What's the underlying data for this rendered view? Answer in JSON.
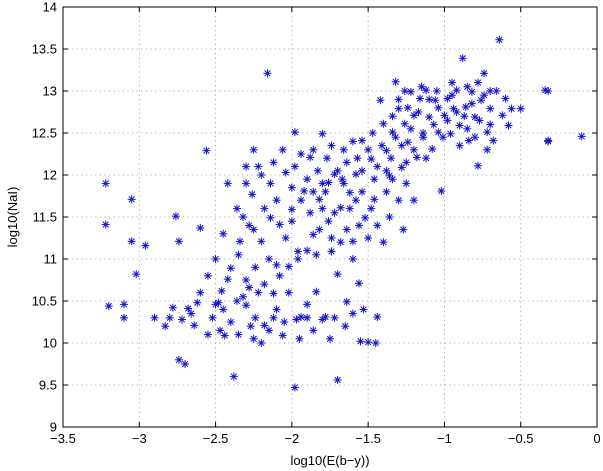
{
  "chart_data": {
    "type": "scatter",
    "title": "",
    "xlabel": "log10(E(b−y))",
    "ylabel": "log10(NaI)",
    "xlim": [
      -3.5,
      0
    ],
    "ylim": [
      9,
      14
    ],
    "xticks": [
      -3.5,
      -3,
      -2.5,
      -2,
      -1.5,
      -1,
      -0.5,
      0
    ],
    "xtick_labels": [
      "−3.5",
      "−3",
      "−2.5",
      "−2",
      "−1.5",
      "−1",
      "−0.5",
      "0"
    ],
    "yticks": [
      9,
      9.5,
      10,
      10.5,
      11,
      11.5,
      12,
      12.5,
      13,
      13.5,
      14
    ],
    "ytick_labels": [
      "9",
      "9.5",
      "10",
      "10.5",
      "11",
      "11.5",
      "12",
      "12.5",
      "13",
      "13.5",
      "14"
    ],
    "grid": true,
    "marker": "asterisk",
    "marker_color": "#1414c8",
    "points": [
      [
        -3.22,
        11.9
      ],
      [
        -3.22,
        11.41
      ],
      [
        -3.2,
        10.44
      ],
      [
        -3.1,
        10.46
      ],
      [
        -3.1,
        10.3
      ],
      [
        -3.05,
        11.71
      ],
      [
        -3.05,
        11.21
      ],
      [
        -3.02,
        10.82
      ],
      [
        -2.96,
        11.16
      ],
      [
        -2.83,
        10.2
      ],
      [
        -2.8,
        10.3
      ],
      [
        -2.76,
        11.51
      ],
      [
        -2.74,
        11.21
      ],
      [
        -2.74,
        9.8
      ],
      [
        -2.7,
        9.75
      ],
      [
        -2.68,
        10.41
      ],
      [
        -2.64,
        10.21
      ],
      [
        -2.62,
        10.48
      ],
      [
        -2.6,
        11.37
      ],
      [
        -2.56,
        12.29
      ],
      [
        -2.5,
        10.46
      ],
      [
        -2.48,
        10.48
      ],
      [
        -2.46,
        10.62
      ],
      [
        -2.44,
        10.09
      ],
      [
        -2.42,
        10.76
      ],
      [
        -2.4,
        10.89
      ],
      [
        -2.38,
        9.6
      ],
      [
        -2.36,
        10.5
      ],
      [
        -2.34,
        11.21
      ],
      [
        -2.32,
        11.5
      ],
      [
        -2.3,
        11.9
      ],
      [
        -2.28,
        10.66
      ],
      [
        -2.26,
        11.77
      ],
      [
        -2.24,
        10.3
      ],
      [
        -2.22,
        12.1
      ],
      [
        -2.2,
        11.21
      ],
      [
        -2.18,
        10.21
      ],
      [
        -2.16,
        13.21
      ],
      [
        -2.14,
        11.49
      ],
      [
        -2.12,
        10.59
      ],
      [
        -2.1,
        10.93
      ],
      [
        -2.08,
        11.41
      ],
      [
        -2.06,
        10.09
      ],
      [
        -2.04,
        12.03
      ],
      [
        -2.02,
        10.91
      ],
      [
        -2.0,
        11.59
      ],
      [
        -1.98,
        12.51
      ],
      [
        -1.98,
        9.47
      ],
      [
        -1.96,
        11.09
      ],
      [
        -1.94,
        10.31
      ],
      [
        -1.92,
        11.81
      ],
      [
        -1.9,
        10.46
      ],
      [
        -1.88,
        12.21
      ],
      [
        -1.86,
        11.29
      ],
      [
        -1.84,
        10.61
      ],
      [
        -1.82,
        11.71
      ],
      [
        -1.8,
        12.49
      ],
      [
        -1.78,
        10.31
      ],
      [
        -1.76,
        11.91
      ],
      [
        -1.74,
        11.09
      ],
      [
        -1.72,
        12.01
      ],
      [
        -1.7,
        10.82
      ],
      [
        -1.7,
        9.56
      ],
      [
        -1.68,
        11.61
      ],
      [
        -1.66,
        12.3
      ],
      [
        -1.64,
        10.49
      ],
      [
        -1.62,
        11.79
      ],
      [
        -1.6,
        11.21
      ],
      [
        -1.58,
        12.01
      ],
      [
        -1.56,
        10.71
      ],
      [
        -1.54,
        12.41
      ],
      [
        -1.52,
        11.49
      ],
      [
        -1.5,
        10.01
      ],
      [
        -1.48,
        12.19
      ],
      [
        -1.46,
        11.71
      ],
      [
        -1.44,
        10.31
      ],
      [
        -1.42,
        12.89
      ],
      [
        -1.4,
        12.61
      ],
      [
        -1.38,
        12.29
      ],
      [
        -1.36,
        11.99
      ],
      [
        -1.34,
        12.51
      ],
      [
        -1.32,
        13.11
      ],
      [
        -1.3,
        12.79
      ],
      [
        -1.28,
        12.09
      ],
      [
        -1.26,
        12.61
      ],
      [
        -1.24,
        12.39
      ],
      [
        -1.22,
        12.99
      ],
      [
        -1.2,
        12.71
      ],
      [
        -1.18,
        12.21
      ],
      [
        -1.16,
        12.91
      ],
      [
        -1.14,
        12.5
      ],
      [
        -1.12,
        13.01
      ],
      [
        -1.1,
        12.69
      ],
      [
        -1.08,
        12.31
      ],
      [
        -1.06,
        12.89
      ],
      [
        -1.04,
        12.51
      ],
      [
        -1.02,
        11.81
      ],
      [
        -1.0,
        12.71
      ],
      [
        -0.98,
        12.91
      ],
      [
        -0.96,
        12.49
      ],
      [
        -0.94,
        12.79
      ],
      [
        -0.92,
        13.01
      ],
      [
        -0.9,
        12.59
      ],
      [
        -0.88,
        13.39
      ],
      [
        -0.86,
        12.81
      ],
      [
        -0.84,
        12.41
      ],
      [
        -0.82,
        12.99
      ],
      [
        -0.8,
        12.69
      ],
      [
        -0.78,
        12.11
      ],
      [
        -0.76,
        12.89
      ],
      [
        -0.74,
        13.21
      ],
      [
        -0.72,
        12.51
      ],
      [
        -0.7,
        12.79
      ],
      [
        -0.68,
        12.41
      ],
      [
        -0.66,
        13.0
      ],
      [
        -0.64,
        13.61
      ],
      [
        -0.62,
        12.71
      ],
      [
        -0.6,
        12.91
      ],
      [
        -0.58,
        12.59
      ],
      [
        -0.56,
        12.79
      ],
      [
        -0.5,
        12.79
      ],
      [
        -0.34,
        13.01
      ],
      [
        -0.32,
        13.0
      ],
      [
        -0.32,
        12.4
      ],
      [
        -0.32,
        12.41
      ],
      [
        -0.1,
        12.46
      ],
      [
        -2.55,
        10.1
      ],
      [
        -2.52,
        10.3
      ],
      [
        -2.47,
        10.15
      ],
      [
        -2.45,
        10.4
      ],
      [
        -2.4,
        10.25
      ],
      [
        -2.35,
        10.1
      ],
      [
        -2.3,
        10.45
      ],
      [
        -2.27,
        10.2
      ],
      [
        -2.25,
        10.05
      ],
      [
        -2.22,
        10.6
      ],
      [
        -2.2,
        10.0
      ],
      [
        -2.18,
        10.7
      ],
      [
        -2.15,
        10.15
      ],
      [
        -2.12,
        10.3
      ],
      [
        -2.1,
        10.4
      ],
      [
        -2.05,
        10.25
      ],
      [
        -2.02,
        10.6
      ],
      [
        -1.97,
        10.28
      ],
      [
        -1.95,
        10.05
      ],
      [
        -1.9,
        10.3
      ],
      [
        -1.86,
        10.15
      ],
      [
        -1.8,
        10.28
      ],
      [
        -1.75,
        10.05
      ],
      [
        -1.72,
        10.3
      ],
      [
        -1.65,
        10.2
      ],
      [
        -1.6,
        10.35
      ],
      [
        -1.55,
        10.02
      ],
      [
        -1.45,
        10.0
      ],
      [
        -1.53,
        10.4
      ],
      [
        -2.35,
        11.05
      ],
      [
        -2.3,
        10.75
      ],
      [
        -2.25,
        11.35
      ],
      [
        -2.15,
        11.0
      ],
      [
        -2.1,
        11.7
      ],
      [
        -2.08,
        10.8
      ],
      [
        -2.04,
        11.25
      ],
      [
        -2.0,
        11.45
      ],
      [
        -1.96,
        11.0
      ],
      [
        -1.94,
        11.7
      ],
      [
        -1.9,
        11.1
      ],
      [
        -1.88,
        11.55
      ],
      [
        -1.86,
        11.8
      ],
      [
        -1.84,
        11.05
      ],
      [
        -1.82,
        11.35
      ],
      [
        -1.8,
        11.6
      ],
      [
        -1.78,
        11.8
      ],
      [
        -1.76,
        11.45
      ],
      [
        -1.74,
        11.25
      ],
      [
        -1.72,
        11.55
      ],
      [
        -1.68,
        11.2
      ],
      [
        -1.66,
        11.9
      ],
      [
        -1.64,
        11.35
      ],
      [
        -1.62,
        11.6
      ],
      [
        -1.6,
        11.0
      ],
      [
        -1.58,
        11.7
      ],
      [
        -1.56,
        11.4
      ],
      [
        -1.54,
        11.8
      ],
      [
        -1.5,
        11.25
      ],
      [
        -1.48,
        11.6
      ],
      [
        -1.46,
        11.95
      ],
      [
        -1.44,
        11.4
      ],
      [
        -1.4,
        11.2
      ],
      [
        -1.38,
        11.8
      ],
      [
        -1.36,
        11.5
      ],
      [
        -1.34,
        11.95
      ],
      [
        -1.3,
        11.7
      ],
      [
        -1.27,
        11.35
      ],
      [
        -1.25,
        11.9
      ],
      [
        -1.2,
        11.7
      ],
      [
        -2.0,
        11.85
      ],
      [
        -1.98,
        12.1
      ],
      [
        -1.94,
        12.25
      ],
      [
        -1.9,
        11.95
      ],
      [
        -1.86,
        12.3
      ],
      [
        -1.83,
        12.05
      ],
      [
        -1.8,
        11.9
      ],
      [
        -1.77,
        12.2
      ],
      [
        -1.74,
        12.35
      ],
      [
        -1.7,
        12.05
      ],
      [
        -1.67,
        11.95
      ],
      [
        -1.64,
        12.15
      ],
      [
        -1.6,
        12.4
      ],
      [
        -1.57,
        12.2
      ],
      [
        -1.54,
        12.05
      ],
      [
        -1.5,
        12.3
      ],
      [
        -1.47,
        12.5
      ],
      [
        -1.44,
        12.1
      ],
      [
        -1.41,
        12.35
      ],
      [
        -1.38,
        12.05
      ],
      [
        -1.35,
        12.2
      ],
      [
        -1.32,
        12.45
      ],
      [
        -1.28,
        12.35
      ],
      [
        -1.25,
        12.15
      ],
      [
        -1.22,
        12.55
      ],
      [
        -1.2,
        12.3
      ],
      [
        -1.17,
        12.75
      ],
      [
        -1.14,
        12.45
      ],
      [
        -1.12,
        12.2
      ],
      [
        -1.1,
        12.9
      ],
      [
        -1.07,
        12.6
      ],
      [
        -1.04,
        12.8
      ],
      [
        -1.01,
        12.45
      ],
      [
        -0.98,
        12.65
      ],
      [
        -0.95,
        12.95
      ],
      [
        -0.92,
        12.75
      ],
      [
        -0.9,
        12.35
      ],
      [
        -0.87,
        12.7
      ],
      [
        -0.85,
        12.55
      ],
      [
        -0.82,
        12.85
      ],
      [
        -0.8,
        12.45
      ],
      [
        -0.77,
        12.65
      ],
      [
        -0.74,
        12.95
      ],
      [
        -0.72,
        12.3
      ],
      [
        -0.7,
        12.6
      ],
      [
        -1.3,
        12.9
      ],
      [
        -1.26,
        13.0
      ],
      [
        -1.15,
        13.05
      ],
      [
        -1.05,
        13.0
      ],
      [
        -0.95,
        13.1
      ],
      [
        -0.85,
        13.05
      ],
      [
        -0.78,
        13.1
      ],
      [
        -0.7,
        13.0
      ],
      [
        -1.34,
        12.7
      ],
      [
        -1.24,
        12.8
      ],
      [
        -2.6,
        10.6
      ],
      [
        -2.66,
        10.35
      ],
      [
        -2.78,
        10.42
      ],
      [
        -2.72,
        10.28
      ],
      [
        -2.9,
        10.3
      ],
      [
        -2.3,
        12.1
      ],
      [
        -2.25,
        12.3
      ],
      [
        -2.2,
        12.0
      ],
      [
        -2.12,
        12.15
      ],
      [
        -2.06,
        12.3
      ],
      [
        -2.42,
        11.9
      ],
      [
        -2.36,
        11.6
      ],
      [
        -2.45,
        11.3
      ],
      [
        -2.5,
        11.0
      ],
      [
        -2.55,
        10.8
      ],
      [
        -2.14,
        11.9
      ],
      [
        -2.18,
        11.6
      ],
      [
        -2.24,
        10.9
      ],
      [
        -2.28,
        11.4
      ],
      [
        -2.32,
        10.55
      ]
    ]
  }
}
